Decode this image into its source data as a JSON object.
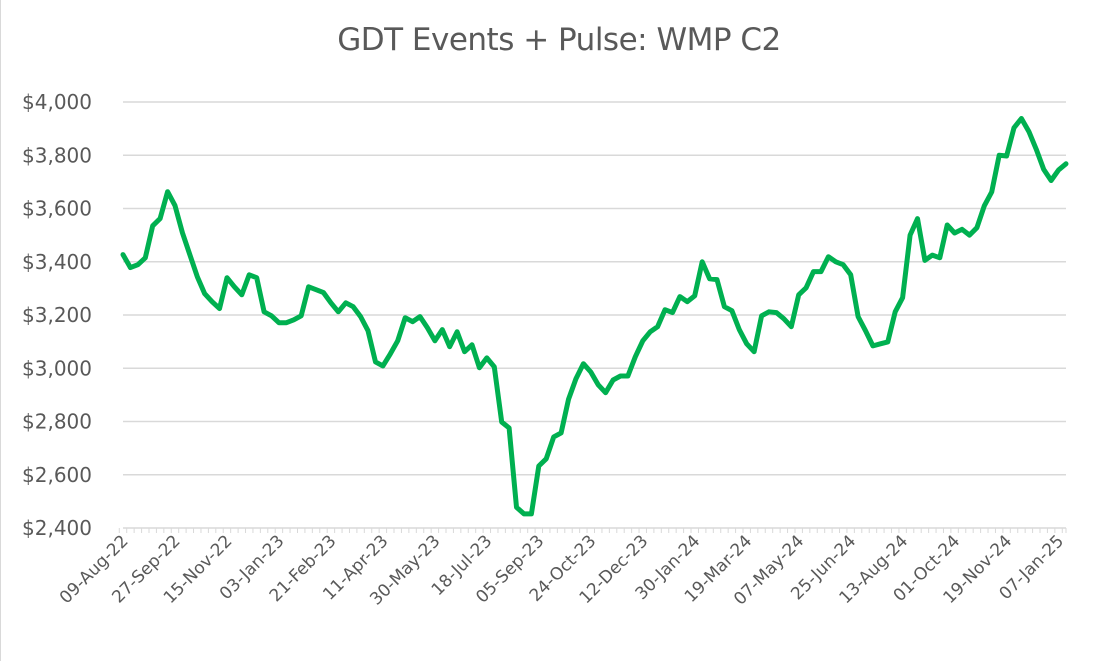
{
  "chart_data": {
    "type": "line",
    "title": "GDT Events + Pulse: WMP C2",
    "xlabel": "",
    "ylabel": "",
    "ylim": [
      2400,
      4000
    ],
    "yticks": [
      2400,
      2600,
      2800,
      3000,
      3200,
      3400,
      3600,
      3800,
      4000
    ],
    "ytick_labels": [
      "$2,400",
      "$2,600",
      "$2,800",
      "$3,000",
      "$3,200",
      "$3,400",
      "$3,600",
      "$3,800",
      "$4,000"
    ],
    "grid": true,
    "legend": "none",
    "x_tick_labels": [
      "09-Aug-22",
      "27-Sep-22",
      "15-Nov-22",
      "03-Jan-23",
      "21-Feb-23",
      "11-Apr-23",
      "30-May-23",
      "18-Jul-23",
      "05-Sep-23",
      "24-Oct-23",
      "12-Dec-23",
      "30-Jan-24",
      "19-Mar-24",
      "07-May-24",
      "25-Jun-24",
      "13-Aug-24",
      "01-Oct-24",
      "19-Nov-24",
      "07-Jan-25"
    ],
    "x_label_every": 7,
    "series": [
      {
        "name": "WMP C2",
        "color": "#00b050",
        "values": [
          3427,
          3378,
          3389,
          3415,
          3535,
          3562,
          3663,
          3611,
          3509,
          3427,
          3344,
          3280,
          3250,
          3224,
          3340,
          3306,
          3276,
          3351,
          3340,
          3212,
          3197,
          3171,
          3171,
          3182,
          3197,
          3306,
          3295,
          3284,
          3246,
          3212,
          3246,
          3231,
          3194,
          3141,
          3024,
          3009,
          3054,
          3103,
          3190,
          3175,
          3194,
          3152,
          3103,
          3145,
          3081,
          3137,
          3062,
          3088,
          3002,
          3039,
          3005,
          2798,
          2776,
          2478,
          2453,
          2453,
          2633,
          2660,
          2742,
          2757,
          2883,
          2960,
          3017,
          2986,
          2938,
          2908,
          2956,
          2971,
          2971,
          3043,
          3103,
          3137,
          3156,
          3220,
          3209,
          3269,
          3250,
          3272,
          3400,
          3336,
          3333,
          3231,
          3216,
          3145,
          3092,
          3062,
          3197,
          3212,
          3209,
          3186,
          3156,
          3276,
          3302,
          3363,
          3363,
          3419,
          3400,
          3389,
          3351,
          3194,
          3141,
          3084,
          3092,
          3099,
          3212,
          3265,
          3500,
          3562,
          3405,
          3425,
          3415,
          3538,
          3508,
          3522,
          3500,
          3528,
          3610,
          3662,
          3800,
          3797,
          3903,
          3938,
          3889,
          3822,
          3747,
          3705,
          3745,
          3768
        ]
      }
    ]
  }
}
